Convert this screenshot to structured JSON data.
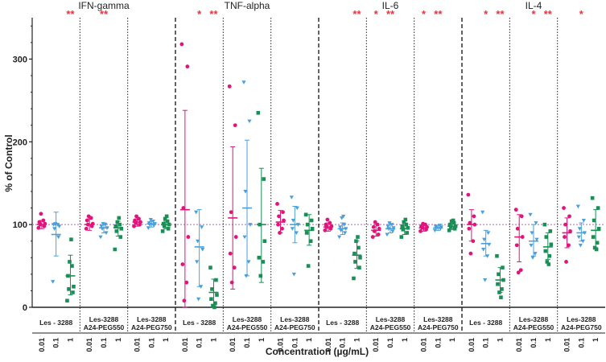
{
  "chart_data": {
    "type": "scatter",
    "ylabel": "% of Control",
    "xlabel": "Concentration (µg/mL)",
    "ylim": [
      0,
      350
    ],
    "yticks": [
      "0",
      "100",
      "200",
      "300"
    ],
    "control_level": 100,
    "x_ticks": [
      "0.01",
      "0.1",
      "1"
    ],
    "colors": [
      "#e0147a",
      "#4a9fdc",
      "#1a8f55"
    ],
    "marker_shapes": [
      "circle",
      "triangle",
      "square"
    ],
    "cytokines": [
      {
        "name": "IFN-gamma",
        "groups": [
          {
            "label1": "Les - 3288",
            "label2": "",
            "sig": [
              "",
              "",
              "**"
            ],
            "series": [
              {
                "mean": 100,
                "err": [
                  95,
                  105
                ],
                "points": [
                  96,
                  98,
                  100,
                  101,
                  103,
                  105,
                  113
                ]
              },
              {
                "mean": 88,
                "err": [
                  62,
                  115
                ],
                "points": [
                  31,
                  85,
                  95,
                  98,
                  100,
                  100,
                  101
                ]
              },
              {
                "mean": 38,
                "err": [
                  15,
                  63
                ],
                "points": [
                  8,
                  18,
                  22,
                  25,
                  38,
                  50,
                  55,
                  82
                ]
              }
            ]
          },
          {
            "label1": "Les-3288",
            "label2": "A24-PEG550",
            "sig": [
              "",
              "**",
              ""
            ],
            "series": [
              {
                "mean": 100,
                "err": [
                  93,
                  107
                ],
                "points": [
                  95,
                  98,
                  100,
                  101,
                  105,
                  108,
                  110
                ]
              },
              {
                "mean": 96,
                "err": [
                  90,
                  102
                ],
                "points": [
                  85,
                  90,
                  95,
                  96,
                  98,
                  100,
                  101
                ]
              },
              {
                "mean": 96,
                "err": [
                  86,
                  104
                ],
                "points": [
                  70,
                  85,
                  92,
                  95,
                  98,
                  100,
                  103,
                  108
                ]
              }
            ]
          },
          {
            "label1": "Les-3288",
            "label2": "A24-PEG750",
            "sig": [
              "",
              "",
              ""
            ],
            "series": [
              {
                "mean": 103,
                "err": [
                  98,
                  107
                ],
                "points": [
                  98,
                  100,
                  102,
                  103,
                  105,
                  107,
                  110
                ]
              },
              {
                "mean": 101,
                "err": [
                  97,
                  104
                ],
                "points": [
                  96,
                  99,
                  100,
                  101,
                  102,
                  104,
                  106
                ]
              },
              {
                "mean": 100,
                "err": [
                  95,
                  104
                ],
                "points": [
                  92,
                  95,
                  98,
                  100,
                  101,
                  104,
                  107,
                  110
                ]
              }
            ]
          }
        ]
      },
      {
        "name": "TNF-alpha",
        "groups": [
          {
            "label1": "Les - 3288",
            "label2": "",
            "sig": [
              "",
              "*",
              "**"
            ],
            "series": [
              {
                "mean": 118,
                "err": [
                  0,
                  238
                ],
                "points": [
                  318,
                  291,
                  120,
                  85,
                  52,
                  30,
                  8
                ]
              },
              {
                "mean": 73,
                "err": [
                  25,
                  118
                ],
                "points": [
                  115,
                  97,
                  80,
                  70,
                  55,
                  25,
                  10
                ]
              },
              {
                "mean": 18,
                "err": [
                  3,
                  34
                ],
                "points": [
                  48,
                  33,
                  22,
                  15,
                  10,
                  5,
                  2,
                  0
                ]
              }
            ]
          },
          {
            "label1": "Les-3288",
            "label2": "A24-PEG550",
            "sig": [
              "",
              "",
              ""
            ],
            "series": [
              {
                "mean": 108,
                "err": [
                  22,
                  194
                ],
                "points": [
                  267,
                  220,
                  115,
                  85,
                  65,
                  48,
                  30
                ]
              },
              {
                "mean": 120,
                "err": [
                  38,
                  202
                ],
                "points": [
                  272,
                  225,
                  140,
                  100,
                  85,
                  55,
                  38
                ]
              },
              {
                "mean": 100,
                "err": [
                  30,
                  168
                ],
                "points": [
                  235,
                  155,
                  100,
                  80,
                  60,
                  55,
                  38
                ]
              }
            ]
          },
          {
            "label1": "Les-3288",
            "label2": "A24-PEG750",
            "sig": [
              "",
              "",
              ""
            ],
            "series": [
              {
                "mean": 103,
                "err": [
                  90,
                  117
                ],
                "points": [
                  125,
                  115,
                  110,
                  105,
                  100,
                  95,
                  90
                ]
              },
              {
                "mean": 100,
                "err": [
                  78,
                  122
                ],
                "points": [
                  133,
                  120,
                  105,
                  100,
                  95,
                  90,
                  40
                ]
              },
              {
                "mean": 93,
                "err": [
                  75,
                  112
                ],
                "points": [
                  112,
                  105,
                  100,
                  95,
                  90,
                  80,
                  50
                ]
              }
            ]
          }
        ]
      },
      {
        "name": "IL-6",
        "groups": [
          {
            "label1": "Les - 3288",
            "label2": "",
            "sig": [
              "",
              "",
              "**"
            ],
            "series": [
              {
                "mean": 97,
                "err": [
                  92,
                  102
                ],
                "points": [
                  93,
                  95,
                  97,
                  98,
                  100,
                  102,
                  106
                ]
              },
              {
                "mean": 95,
                "err": [
                  88,
                  102
                ],
                "points": [
                  85,
                  90,
                  93,
                  95,
                  97,
                  100,
                  108,
                  110
                ]
              },
              {
                "mean": 63,
                "err": [
                  47,
                  80
                ],
                "points": [
                  35,
                  48,
                  55,
                  60,
                  65,
                  72,
                  80,
                  85
                ]
              }
            ]
          },
          {
            "label1": "Les-3288",
            "label2": "A24-PEG550",
            "sig": [
              "*",
              "**",
              ""
            ],
            "series": [
              {
                "mean": 93,
                "err": [
                  86,
                  100
                ],
                "points": [
                  85,
                  88,
                  92,
                  95,
                  97,
                  100,
                  103
                ]
              },
              {
                "mean": 95,
                "err": [
                  90,
                  101
                ],
                "points": [
                  88,
                  92,
                  95,
                  96,
                  98,
                  100,
                  102
                ]
              },
              {
                "mean": 95,
                "err": [
                  88,
                  102
                ],
                "points": [
                  85,
                  90,
                  94,
                  96,
                  98,
                  100,
                  103,
                  106
                ]
              }
            ]
          },
          {
            "label1": "Les-3288",
            "label2": "A24-PEG750",
            "sig": [
              "*",
              "**",
              ""
            ],
            "series": [
              {
                "mean": 96,
                "err": [
                  92,
                  100
                ],
                "points": [
                  92,
                  94,
                  96,
                  97,
                  98,
                  100,
                  101
                ]
              },
              {
                "mean": 96,
                "err": [
                  93,
                  99
                ],
                "points": [
                  93,
                  95,
                  96,
                  97,
                  98,
                  99
                ]
              },
              {
                "mean": 98,
                "err": [
                  94,
                  103
                ],
                "points": [
                  93,
                  95,
                  97,
                  98,
                  100,
                  102,
                  104,
                  105
                ]
              }
            ]
          }
        ]
      },
      {
        "name": "IL-4",
        "groups": [
          {
            "label1": "Les - 3288",
            "label2": "",
            "sig": [
              "",
              "*",
              "**"
            ],
            "series": [
              {
                "mean": 100,
                "err": [
                  80,
                  118
                ],
                "points": [
                  136,
                  110,
                  102,
                  100,
                  95,
                  80,
                  65
                ]
              },
              {
                "mean": 77,
                "err": [
                  62,
                  93
                ],
                "points": [
                  115,
                  90,
                  82,
                  76,
                  70,
                  62,
                  33
                ]
              },
              {
                "mean": 33,
                "err": [
                  18,
                  48
                ],
                "points": [
                  62,
                  48,
                  40,
                  33,
                  28,
                  22,
                  18,
                  12
                ]
              }
            ]
          },
          {
            "label1": "Les-3288",
            "label2": "A24-PEG550",
            "sig": [
              "",
              "*",
              "**"
            ],
            "series": [
              {
                "mean": 85,
                "err": [
                  55,
                  112
                ],
                "points": [
                  118,
                  110,
                  95,
                  85,
                  75,
                  45,
                  42
                ]
              },
              {
                "mean": 80,
                "err": [
                  62,
                  100
                ],
                "points": [
                  112,
                  102,
                  90,
                  82,
                  75,
                  65,
                  60
                ]
              },
              {
                "mean": 73,
                "err": [
                  58,
                  90
                ],
                "points": [
                  100,
                  92,
                  85,
                  76,
                  68,
                  62,
                  55,
                  52
                ]
              }
            ]
          },
          {
            "label1": "Les-3288",
            "label2": "A24-PEG750",
            "sig": [
              "",
              "*",
              ""
            ],
            "series": [
              {
                "mean": 90,
                "err": [
                  72,
                  108
                ],
                "points": [
                  120,
                  110,
                  100,
                  92,
                  85,
                  75,
                  55
                ]
              },
              {
                "mean": 90,
                "err": [
                  80,
                  102
                ],
                "points": [
                  122,
                  105,
                  95,
                  90,
                  85,
                  80,
                  75
                ]
              },
              {
                "mean": 93,
                "err": [
                  72,
                  118
                ],
                "points": [
                  132,
                  120,
                  105,
                  95,
                  85,
                  78,
                  72,
                  70
                ]
              }
            ]
          }
        ]
      }
    ]
  }
}
